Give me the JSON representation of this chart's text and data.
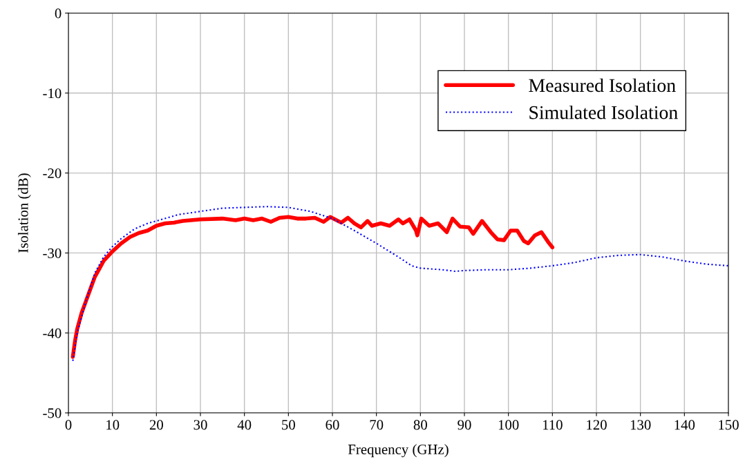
{
  "chart_data": {
    "type": "line",
    "xlabel": "Frequency (GHz)",
    "ylabel": "Isolation (dB)",
    "xlim": [
      0,
      150
    ],
    "xticks": [
      0,
      10,
      20,
      30,
      40,
      50,
      60,
      70,
      80,
      90,
      100,
      110,
      120,
      130,
      140,
      150
    ],
    "ylim": [
      -50,
      0
    ],
    "yticks": [
      -50,
      -40,
      -30,
      -20,
      -10,
      0
    ],
    "grid": true,
    "legend": "top right",
    "series": [
      {
        "name": "Measured Isolation",
        "color": "#ff0000",
        "line_style": "solid",
        "x": [
          1,
          1.5,
          2,
          3,
          4,
          5,
          6,
          7,
          8,
          10,
          12,
          14,
          16,
          18,
          20,
          22,
          24,
          26,
          30,
          35,
          38,
          40,
          42,
          44,
          46,
          48,
          50,
          52,
          54,
          56,
          58,
          59.5,
          62,
          63.5,
          65,
          66.5,
          68,
          69,
          71,
          73,
          75,
          76,
          77.5,
          79,
          79.3,
          80.2,
          82,
          84,
          86,
          87.3,
          89,
          91,
          92,
          94,
          96,
          97.5,
          99,
          100.5,
          102,
          103.5,
          104.5,
          106,
          107.5,
          109,
          110
        ],
        "values": [
          -43,
          -41,
          -39.5,
          -37.5,
          -36,
          -34.5,
          -33,
          -32,
          -31,
          -29.8,
          -28.8,
          -28,
          -27.5,
          -27.2,
          -26.6,
          -26.3,
          -26.2,
          -26,
          -25.8,
          -25.7,
          -25.9,
          -25.7,
          -25.9,
          -25.7,
          -26.1,
          -25.6,
          -25.5,
          -25.7,
          -25.7,
          -25.6,
          -26.1,
          -25.5,
          -26.2,
          -25.6,
          -26.3,
          -26.8,
          -26,
          -26.6,
          -26.3,
          -26.6,
          -25.8,
          -26.3,
          -25.8,
          -27.2,
          -27.8,
          -25.7,
          -26.6,
          -26.3,
          -27.4,
          -25.7,
          -26.7,
          -26.8,
          -27.6,
          -26,
          -27.4,
          -28.3,
          -28.4,
          -27.2,
          -27.2,
          -28.5,
          -28.8,
          -27.8,
          -27.4,
          -28.6,
          -29.3
        ]
      },
      {
        "name": "Simulated Isolation",
        "color": "#0000ff",
        "line_style": "dotted",
        "x": [
          1,
          2,
          4,
          6,
          8,
          10,
          12,
          15,
          18,
          20,
          25,
          30,
          35,
          40,
          45,
          50,
          55,
          60,
          65,
          70,
          75,
          78,
          80,
          85,
          88,
          90,
          95,
          100,
          105,
          110,
          115,
          120,
          125,
          130,
          135,
          140,
          145,
          150
        ],
        "values": [
          -43.5,
          -40,
          -36,
          -32.5,
          -30.5,
          -29.2,
          -28.2,
          -27,
          -26.3,
          -26,
          -25.2,
          -24.8,
          -24.4,
          -24.3,
          -24.2,
          -24.3,
          -24.8,
          -25.7,
          -27.2,
          -28.8,
          -30.5,
          -31.6,
          -31.9,
          -32.1,
          -32.3,
          -32.2,
          -32.1,
          -32.1,
          -31.9,
          -31.6,
          -31.2,
          -30.6,
          -30.3,
          -30.2,
          -30.5,
          -31,
          -31.4,
          -31.6
        ]
      }
    ]
  }
}
